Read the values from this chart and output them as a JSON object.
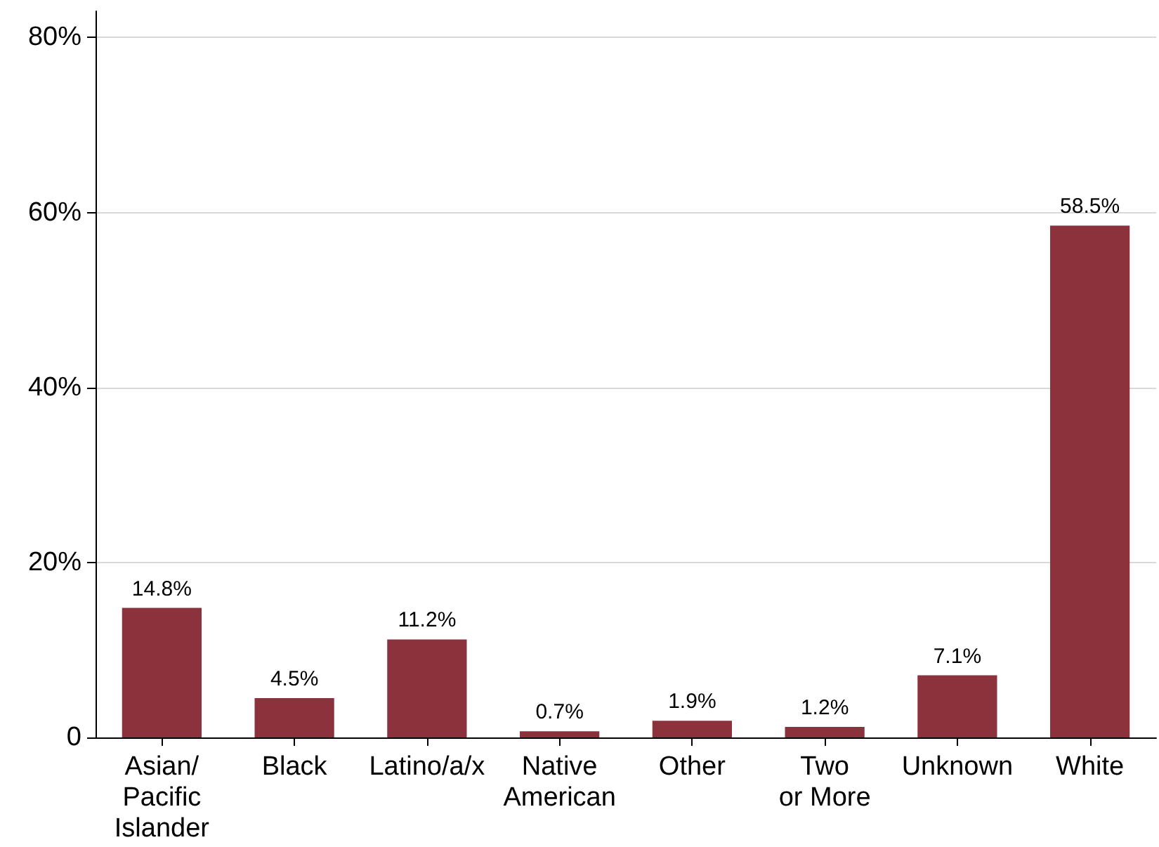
{
  "chart_data": {
    "type": "bar",
    "categories": [
      "Asian/\nPacific\nIslander",
      "Black",
      "Latino/a/x",
      "Native\nAmerican",
      "Other",
      "Two\nor More",
      "Unknown",
      "White"
    ],
    "values": [
      14.8,
      4.5,
      11.2,
      0.7,
      1.9,
      1.2,
      7.1,
      58.5
    ],
    "value_labels": [
      "14.8%",
      "4.5%",
      "11.2%",
      "0.7%",
      "1.9%",
      "1.2%",
      "7.1%",
      "58.5%"
    ],
    "color": "#8c323c",
    "ylim": [
      0,
      83
    ],
    "yticks": [
      {
        "value": 0,
        "label": "0"
      },
      {
        "value": 20,
        "label": "20%"
      },
      {
        "value": 40,
        "label": "40%"
      },
      {
        "value": 60,
        "label": "60%"
      },
      {
        "value": 80,
        "label": "80%"
      }
    ],
    "grid": "y"
  }
}
